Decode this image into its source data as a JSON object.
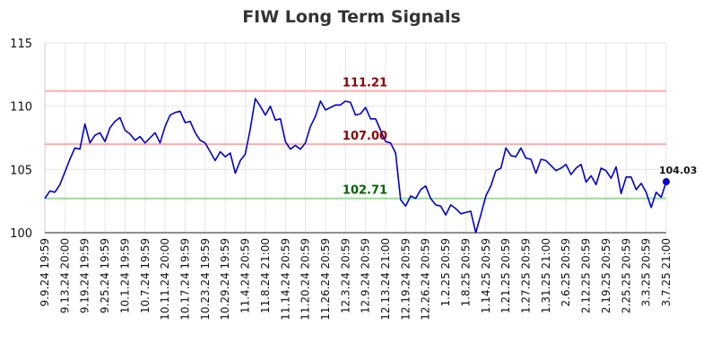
{
  "chart_data": {
    "type": "line",
    "title": "FIW Long Term Signals",
    "ylim": [
      100,
      115
    ],
    "yticks": [
      100,
      105,
      110,
      115
    ],
    "grid": true,
    "colors": {
      "line": "#0000cc",
      "resistance": "#ffaaaa",
      "support": "#99dd99",
      "resistance_text": "#8b0000",
      "support_text": "#006400",
      "grid": "#e6e6e6"
    },
    "xtick_labels": [
      "9.9.24 19:59",
      "9.13.24 20:00",
      "9.19.24 19:59",
      "9.25.24 19:59",
      "10.1.24 19:59",
      "10.7.24 19:59",
      "10.11.24 20:00",
      "10.17.24 19:59",
      "10.23.24 19:59",
      "10.29.24 19:59",
      "11.4.24 20:59",
      "11.8.24 21:00",
      "11.14.24 20:59",
      "11.20.24 20:59",
      "11.26.24 20:59",
      "12.3.24 20:59",
      "12.9.24 20:59",
      "12.13.24 21:00",
      "12.19.24 20:59",
      "12.26.24 20:59",
      "1.2.25 20:59",
      "1.8.25 20:59",
      "1.14.25 20:59",
      "1.21.25 20:59",
      "1.27.25 20:59",
      "1.31.25 21:00",
      "2.6.25 20:59",
      "2.12.25 20:59",
      "2.19.25 20:59",
      "2.25.25 20:59",
      "3.3.25 20:59",
      "3.7.25 21:00"
    ],
    "tick_positions": [
      0,
      4,
      8,
      12,
      16,
      20,
      24,
      28,
      32,
      36,
      40,
      44,
      48,
      52,
      56,
      60,
      64,
      68,
      72,
      76,
      80,
      84,
      88,
      92,
      96,
      100,
      104,
      108,
      112,
      116,
      120,
      124
    ],
    "values": [
      102.7,
      103.3,
      103.2,
      103.8,
      104.8,
      105.8,
      106.7,
      106.6,
      108.6,
      107.1,
      107.7,
      107.9,
      107.2,
      108.3,
      108.8,
      109.1,
      108.1,
      107.8,
      107.3,
      107.6,
      107.1,
      107.5,
      107.9,
      107.1,
      108.4,
      109.3,
      109.5,
      109.6,
      108.7,
      108.8,
      107.9,
      107.3,
      107.1,
      106.4,
      105.7,
      106.4,
      106.0,
      106.3,
      104.7,
      105.7,
      106.2,
      108.2,
      110.6,
      110.0,
      109.3,
      110.0,
      108.9,
      109.0,
      107.2,
      106.6,
      106.9,
      106.6,
      107.1,
      108.4,
      109.2,
      110.4,
      109.7,
      109.9,
      110.1,
      110.1,
      110.4,
      110.3,
      109.3,
      109.4,
      109.9,
      109.0,
      109.0,
      108.1,
      107.2,
      107.1,
      106.3,
      102.6,
      102.1,
      102.9,
      102.7,
      103.4,
      103.7,
      102.7,
      102.2,
      102.1,
      101.4,
      102.2,
      101.9,
      101.5,
      101.6,
      101.7,
      100.0,
      101.4,
      102.9,
      103.7,
      104.9,
      105.1,
      106.7,
      106.1,
      106.0,
      106.7,
      105.9,
      105.8,
      104.7,
      105.8,
      105.7,
      105.3,
      104.9,
      105.1,
      105.4,
      104.6,
      105.1,
      105.4,
      104.0,
      104.5,
      103.8,
      105.1,
      104.9,
      104.3,
      105.2,
      103.1,
      104.4,
      104.4,
      103.4,
      103.9,
      103.2,
      102.0,
      103.2,
      102.8,
      104.03
    ],
    "horizontal_lines": [
      {
        "value": 111.21,
        "label": "111.21",
        "kind": "resistance"
      },
      {
        "value": 107.0,
        "label": "107.00",
        "kind": "resistance"
      },
      {
        "value": 102.71,
        "label": "102.71",
        "kind": "support"
      }
    ],
    "end_label": "104.03"
  }
}
